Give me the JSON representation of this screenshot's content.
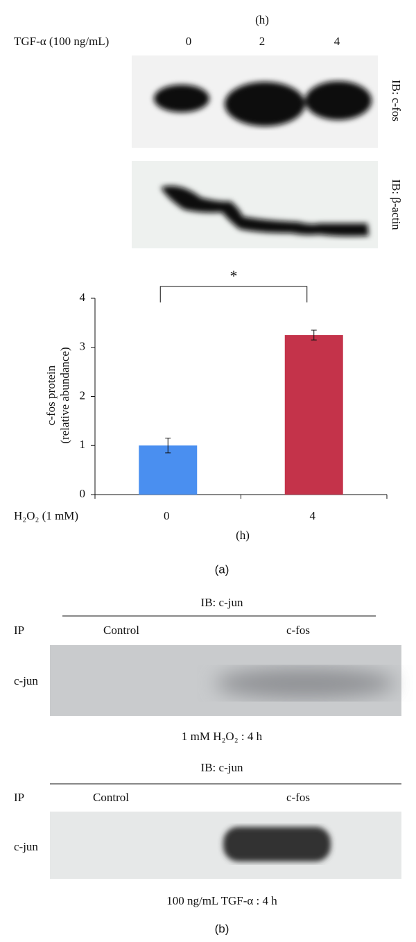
{
  "panel_a": {
    "time_unit": "(h)",
    "treatment": "TGF-α (100 ng/mL)",
    "lanes": [
      "0",
      "2",
      "4"
    ],
    "blot_labels": [
      "IB: c-fos",
      "IB: β-actin"
    ],
    "panel_label": "(a)"
  },
  "chart_data": {
    "type": "bar",
    "y_label": [
      "c-fos protein",
      "(relative abundance)"
    ],
    "x_label": "H₂O₂ (1 mM)",
    "x_unit": "(h)",
    "annotation": "*",
    "categories": [
      "0",
      "4"
    ],
    "values": [
      1.0,
      3.25
    ],
    "errors": [
      0.15,
      0.1
    ],
    "colors": [
      "#4a8ff0",
      "#c4334a"
    ],
    "ylim": [
      0,
      4
    ],
    "yticks": [
      0,
      1,
      2,
      3,
      4
    ]
  },
  "panel_b": {
    "blocks": [
      {
        "header": "IB: c-jun",
        "ip": "IP",
        "columns": [
          "Control",
          "c-fos"
        ],
        "row": "c-jun",
        "caption": "1 mM H₂O₂ : 4 h"
      },
      {
        "header": "IB: c-jun",
        "ip": "IP",
        "columns": [
          "Control",
          "c-fos"
        ],
        "row": "c-jun",
        "caption": "100 ng/mL TGF-α : 4 h"
      }
    ],
    "panel_label": "(b)"
  }
}
